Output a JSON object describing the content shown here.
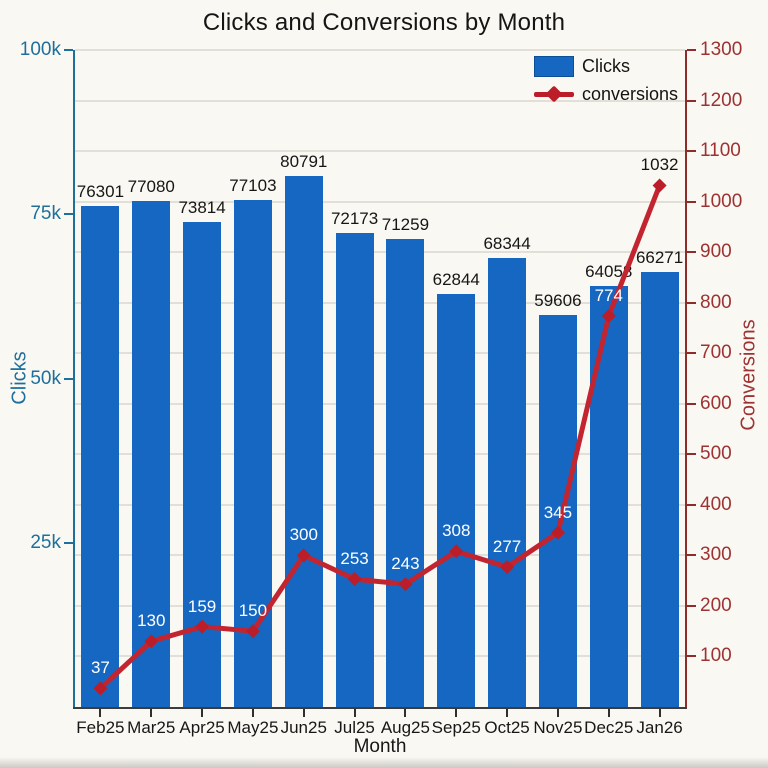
{
  "chart_data": {
    "type": "combo_bar_line",
    "title": "Clicks and Conversions by Month",
    "xlabel": "Month",
    "categories": [
      "Feb25",
      "Mar25",
      "Apr25",
      "May25",
      "Jun25",
      "Jul25",
      "Aug25",
      "Sep25",
      "Oct25",
      "Nov25",
      "Dec25",
      "Jan26"
    ],
    "series": [
      {
        "name": "Clicks",
        "type": "bar",
        "axis": "left",
        "color": "#1567c1",
        "values": [
          76301,
          77080,
          73814,
          77103,
          80791,
          72173,
          71259,
          62844,
          68344,
          59606,
          64058,
          66271
        ]
      },
      {
        "name": "conversions",
        "type": "line",
        "axis": "right",
        "color": "#c22430",
        "marker": "diamond",
        "marker_color": "#bb1e28",
        "values": [
          37,
          130,
          159,
          150,
          300,
          253,
          243,
          308,
          277,
          345,
          774,
          1032
        ]
      }
    ],
    "left_axis": {
      "label": "Clicks",
      "color": "#1e6f9c",
      "range": [
        0,
        100000
      ],
      "tick_values": [
        25000,
        50000,
        75000,
        100000
      ],
      "tick_labels": [
        "25k",
        "50k",
        "75k",
        "100k"
      ]
    },
    "right_axis": {
      "label": "Conversions",
      "color": "#9e3232",
      "range": [
        0,
        1300
      ],
      "tick_values": [
        100,
        200,
        300,
        400,
        500,
        600,
        700,
        800,
        900,
        1000,
        1100,
        1200,
        1300
      ],
      "tick_labels": [
        "100",
        "200",
        "300",
        "400",
        "500",
        "600",
        "700",
        "800",
        "900",
        "1000",
        "1100",
        "1200",
        "1300"
      ]
    },
    "legend": {
      "position": "top-right"
    },
    "grid": "horizontal"
  }
}
